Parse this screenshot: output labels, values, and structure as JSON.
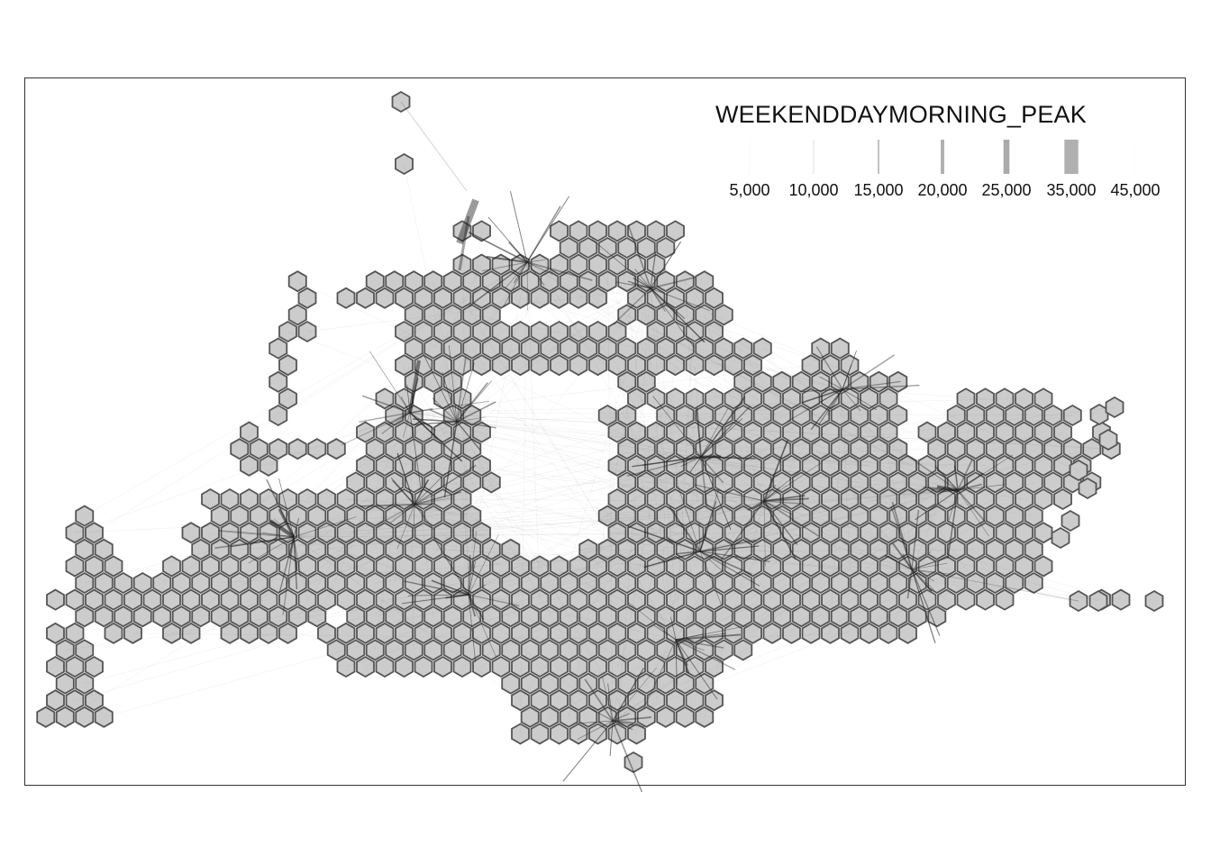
{
  "legend": {
    "title": "WEEKENDDAYMORNING_PEAK",
    "items": [
      {
        "label": "5,000",
        "value": 5000,
        "weight": 0.15,
        "color": "#f2f2f2"
      },
      {
        "label": "10,000",
        "value": 10000,
        "weight": 0.4,
        "color": "#dedede"
      },
      {
        "label": "15,000",
        "value": 15000,
        "weight": 0.9,
        "color": "#c2c2c2"
      },
      {
        "label": "20,000",
        "value": 20000,
        "weight": 1.8,
        "color": "#b0b0b0"
      },
      {
        "label": "25,000",
        "value": 25000,
        "weight": 3.0,
        "color": "#aaaaaa"
      },
      {
        "label": "35,000",
        "value": 35000,
        "weight": 7.0,
        "color": "#b0b0b0"
      },
      {
        "label": "45,000",
        "value": 45000,
        "weight": 0.15,
        "color": "#f5f5f5"
      }
    ]
  },
  "colors": {
    "hex_fill": "#cccccc",
    "hex_stroke": "#555555",
    "flow": "#222222",
    "frame": "#333333"
  }
}
